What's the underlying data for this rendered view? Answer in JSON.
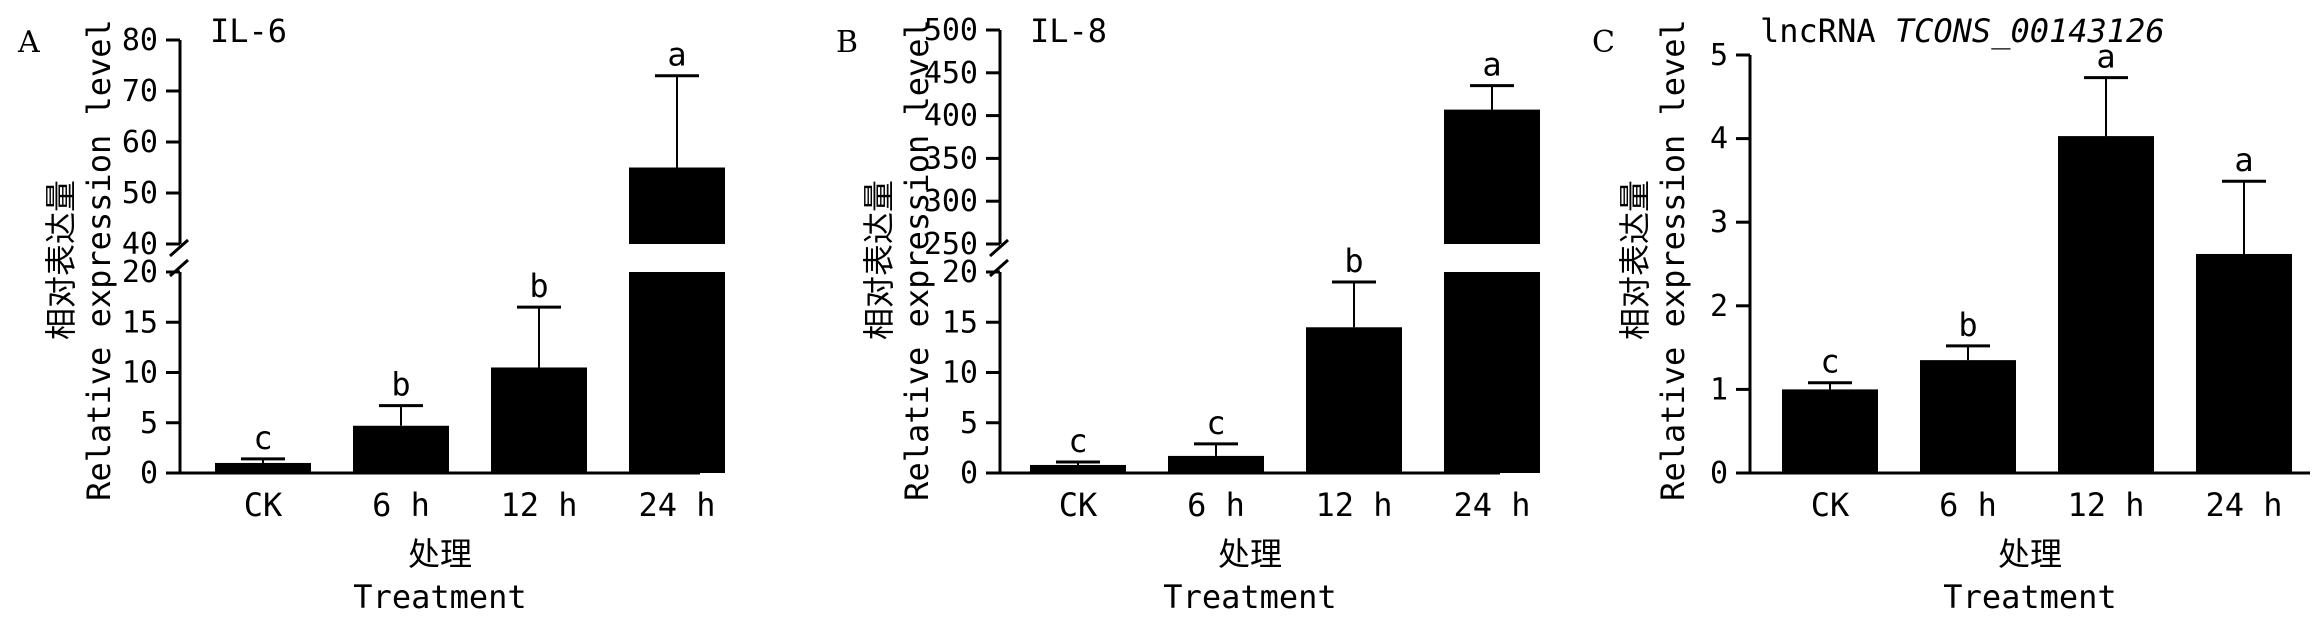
{
  "chart_data": [
    {
      "type": "bar",
      "panel_label": "A",
      "title": "IL-6",
      "ylabel_cn": "相对表达量",
      "ylabel_en": "Relative expression level",
      "xlabel_cn": "处理",
      "xlabel_en": "Treatment",
      "categories": [
        "CK",
        "6 h",
        "12 h",
        "24 h"
      ],
      "values": [
        1.0,
        4.7,
        10.5,
        55
      ],
      "errors": [
        0.4,
        2.0,
        6.0,
        18
      ],
      "letters": [
        "c",
        "b",
        "b",
        "a"
      ],
      "broken_axis": true,
      "lower_range": [
        0,
        20
      ],
      "upper_range": [
        40,
        80
      ],
      "lower_ticks": [
        "0",
        "5",
        "10",
        "15",
        "20"
      ],
      "upper_ticks": [
        "40",
        "50",
        "60",
        "70",
        "80"
      ]
    },
    {
      "type": "bar",
      "panel_label": "B",
      "title": "IL-8",
      "ylabel_cn": "相对表达量",
      "ylabel_en": "Relative expression level",
      "xlabel_cn": "处理",
      "xlabel_en": "Treatment",
      "categories": [
        "CK",
        "6 h",
        "12 h",
        "24 h"
      ],
      "values": [
        0.8,
        1.7,
        14.5,
        407
      ],
      "errors": [
        0.3,
        1.2,
        4.5,
        28
      ],
      "letters": [
        "c",
        "c",
        "b",
        "a"
      ],
      "broken_axis": true,
      "lower_range": [
        0,
        20
      ],
      "upper_range": [
        250,
        500
      ],
      "lower_ticks": [
        "0",
        "5",
        "10",
        "15",
        "20"
      ],
      "upper_ticks": [
        "250",
        "300",
        "350",
        "400",
        "450",
        "500"
      ]
    },
    {
      "type": "bar",
      "panel_label": "C",
      "title_prefix": "lncRNA ",
      "title_italic": "TCONS_00143126",
      "ylabel_cn": "相对表达量",
      "ylabel_en": "Relative expression level",
      "xlabel_cn": "处理",
      "xlabel_en": "Treatment",
      "categories": [
        "CK",
        "6 h",
        "12 h",
        "24 h"
      ],
      "values": [
        1.0,
        1.35,
        4.03,
        2.62
      ],
      "errors": [
        0.08,
        0.17,
        0.7,
        0.87
      ],
      "letters": [
        "c",
        "b",
        "a",
        "a"
      ],
      "broken_axis": false,
      "ylim": [
        0,
        5
      ],
      "ticks": [
        "0",
        "1",
        "2",
        "3",
        "4",
        "5"
      ]
    }
  ]
}
